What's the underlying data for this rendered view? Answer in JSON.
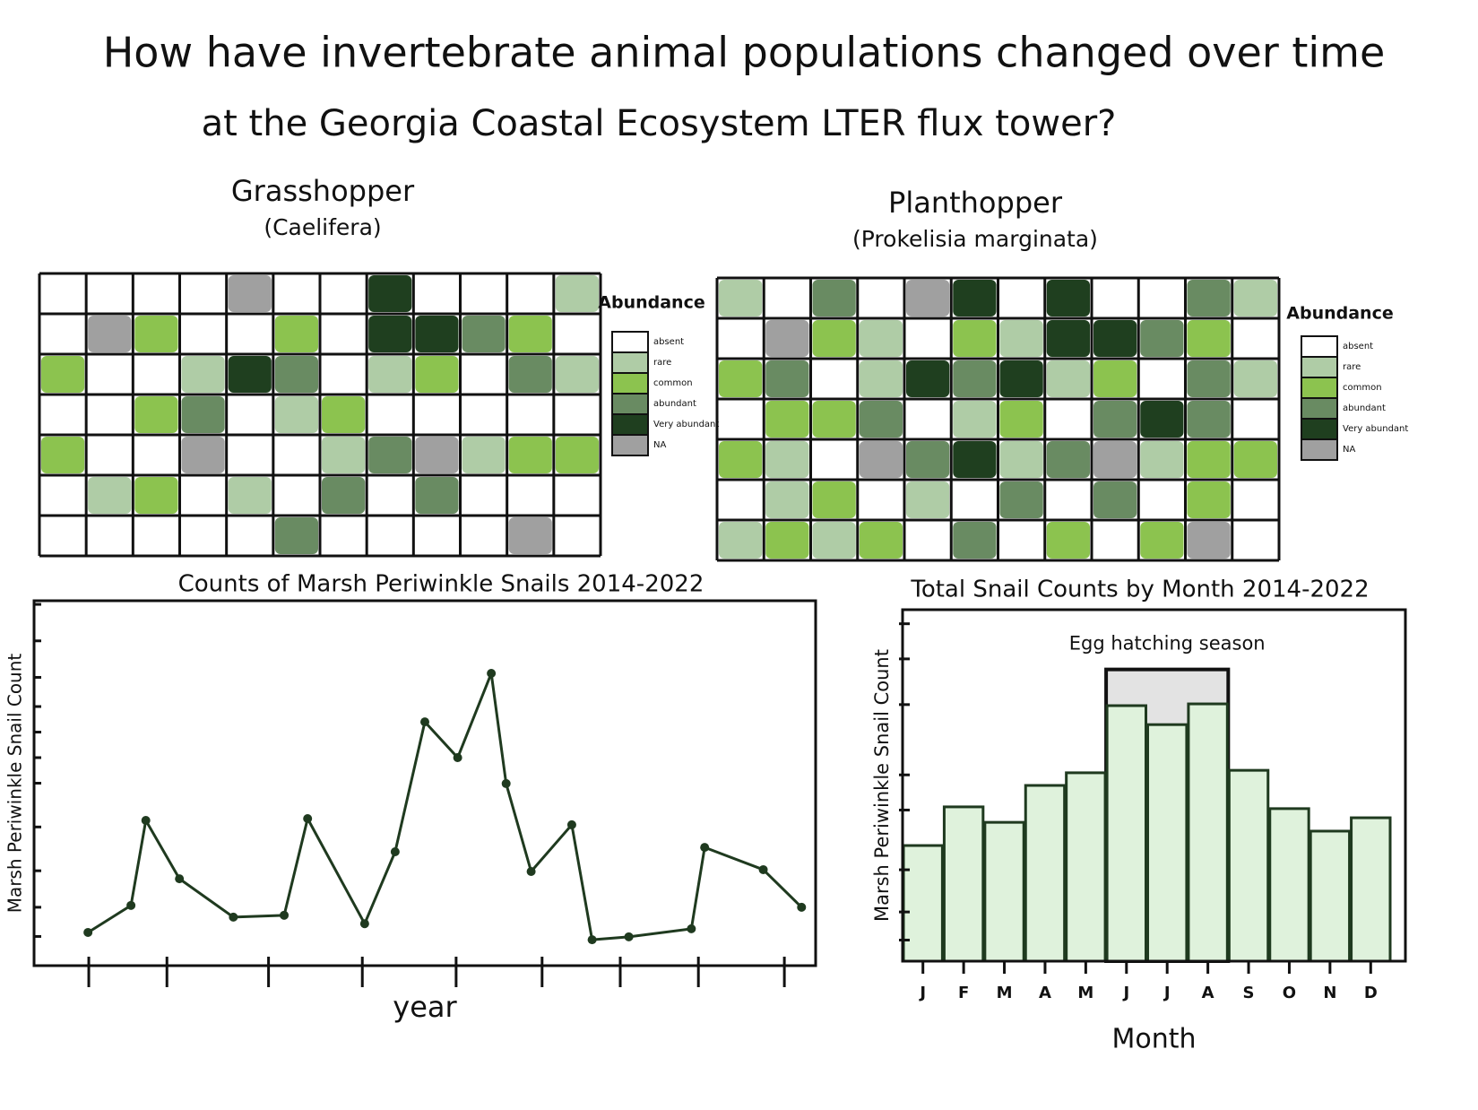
{
  "title": [
    "How have invertebrate animal populations changed over time",
    "at the Georgia Coastal Ecosystem LTER flux tower?"
  ],
  "chart_data": [
    {
      "type": "heatmap",
      "title": "Grasshopper",
      "subtitle": "(Caelifera)",
      "legend_title": "Abundance",
      "levels": [
        {
          "name": "absent",
          "color": "#ffffff"
        },
        {
          "name": "rare",
          "color": "#afcca6"
        },
        {
          "name": "common",
          "color": "#8cc34f"
        },
        {
          "name": "abundant",
          "color": "#698b62"
        },
        {
          "name": "Very abundant",
          "color": "#1f3f1f"
        },
        {
          "name": "NA",
          "color": "#a0a0a0"
        }
      ],
      "cells": [
        [
          0,
          0,
          0,
          0,
          5,
          0,
          0,
          4,
          0,
          0,
          0,
          1
        ],
        [
          0,
          5,
          2,
          0,
          0,
          2,
          0,
          4,
          4,
          3,
          2,
          0
        ],
        [
          2,
          0,
          0,
          1,
          4,
          3,
          0,
          1,
          2,
          0,
          3,
          1
        ],
        [
          0,
          0,
          2,
          3,
          0,
          1,
          2,
          0,
          0,
          0,
          0,
          0
        ],
        [
          2,
          0,
          0,
          5,
          0,
          0,
          1,
          3,
          5,
          1,
          2,
          2
        ],
        [
          0,
          1,
          2,
          0,
          1,
          0,
          3,
          0,
          3,
          0,
          0,
          0
        ],
        [
          0,
          0,
          0,
          0,
          0,
          3,
          0,
          0,
          0,
          0,
          5,
          0
        ]
      ]
    },
    {
      "type": "heatmap",
      "title": "Planthopper",
      "subtitle": "(Prokelisia marginata)",
      "legend_title": "Abundance",
      "levels": [
        {
          "name": "absent",
          "color": "#ffffff"
        },
        {
          "name": "rare",
          "color": "#afcca6"
        },
        {
          "name": "common",
          "color": "#8cc34f"
        },
        {
          "name": "abundant",
          "color": "#698b62"
        },
        {
          "name": "Very abundant",
          "color": "#1f3f1f"
        },
        {
          "name": "NA",
          "color": "#a0a0a0"
        }
      ],
      "cells": [
        [
          1,
          0,
          3,
          0,
          5,
          4,
          0,
          4,
          0,
          0,
          3,
          1
        ],
        [
          0,
          5,
          2,
          1,
          0,
          2,
          1,
          4,
          4,
          3,
          2,
          0
        ],
        [
          2,
          3,
          0,
          1,
          4,
          3,
          4,
          1,
          2,
          0,
          3,
          1
        ],
        [
          0,
          2,
          2,
          3,
          0,
          1,
          2,
          0,
          3,
          4,
          3,
          0
        ],
        [
          2,
          1,
          0,
          5,
          3,
          4,
          1,
          3,
          5,
          1,
          2,
          2
        ],
        [
          0,
          1,
          2,
          0,
          1,
          0,
          3,
          0,
          3,
          0,
          2,
          0
        ],
        [
          1,
          2,
          1,
          2,
          0,
          3,
          0,
          2,
          0,
          2,
          5,
          0
        ]
      ]
    },
    {
      "type": "line",
      "title": "Counts of Marsh Periwinkle Snails 2014-2022",
      "x_label": "year",
      "y_label": "Marsh Periwinkle Snail Count",
      "color": "#1f3a1f",
      "x": [
        6.9,
        12.4,
        14.3,
        18.6,
        25.5,
        32,
        35,
        42.3,
        46.2,
        50,
        54.2,
        58.5,
        60.4,
        63.6,
        68.8,
        71.4,
        76.1,
        84.1,
        85.8,
        93.3,
        98.2
      ],
      "values": [
        9.1,
        16.5,
        39.8,
        23.8,
        13.3,
        13.8,
        40.3,
        11.5,
        31.2,
        66.8,
        57,
        80.1,
        49.9,
        25.8,
        38.6,
        7.1,
        7.9,
        10.1,
        32.4,
        26.3,
        16
      ],
      "xlim": [
        0,
        100
      ],
      "ylim": [
        0,
        100
      ],
      "xticks": [
        7,
        17,
        30,
        42,
        54,
        65,
        75,
        85,
        96
      ],
      "yticks": [
        8,
        16,
        26,
        38,
        50,
        57,
        64,
        71,
        79,
        89,
        99
      ]
    },
    {
      "type": "bar",
      "title": "Total Snail Counts by Month 2014-2022",
      "x_label": "Month",
      "y_label": "Marsh Periwinkle Snail Count",
      "color": "#dff2dc",
      "categories": [
        "J",
        "F",
        "M",
        "A",
        "M",
        "J",
        "J",
        "A",
        "S",
        "O",
        "N",
        "D"
      ],
      "values": [
        32.9,
        43.9,
        39.5,
        50,
        53.6,
        72.7,
        67.3,
        73.2,
        54.3,
        43.4,
        37,
        40.8
      ],
      "ylim": [
        0,
        100
      ],
      "yticks": [
        6,
        14,
        26,
        43,
        53,
        73,
        86,
        96
      ],
      "annotation": {
        "text": "Egg hatching season",
        "start": 5,
        "end": 7
      }
    }
  ]
}
